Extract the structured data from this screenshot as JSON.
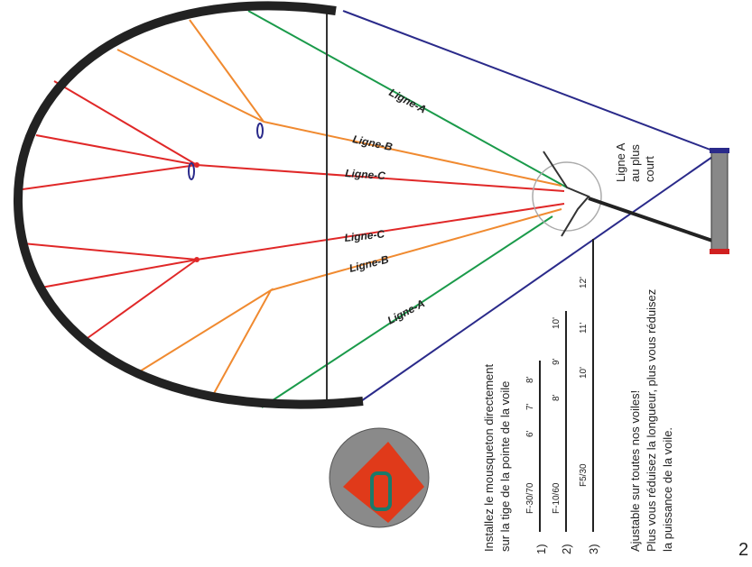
{
  "line_labels": [
    "Ligne-A",
    "Ligne-B",
    "Ligne-C",
    "Ligne-C",
    "Ligne-B",
    "Ligne-A"
  ],
  "callout": [
    "Ligne A",
    "au plus",
    "court"
  ],
  "instructions": [
    "Installez le mousqueton directement",
    "sur la tige de la pointe de la voile"
  ],
  "setups": [
    {
      "number": "1)",
      "model": "F-30/70",
      "marks": [
        "6'",
        "7'",
        "8'"
      ]
    },
    {
      "number": "2)",
      "model": "F-10/60",
      "marks": [
        "8'",
        "9'",
        "10'"
      ]
    },
    {
      "number": "3)",
      "model": "F5/30",
      "marks": [
        "10'",
        "11'",
        "12'"
      ]
    }
  ],
  "adjustable": [
    "Ajustable sur toutes nos voiles!",
    "Plus vous réduisez la longueur, plus vous réduisez",
    "la puissance de la voile."
  ],
  "page_number": "2"
}
